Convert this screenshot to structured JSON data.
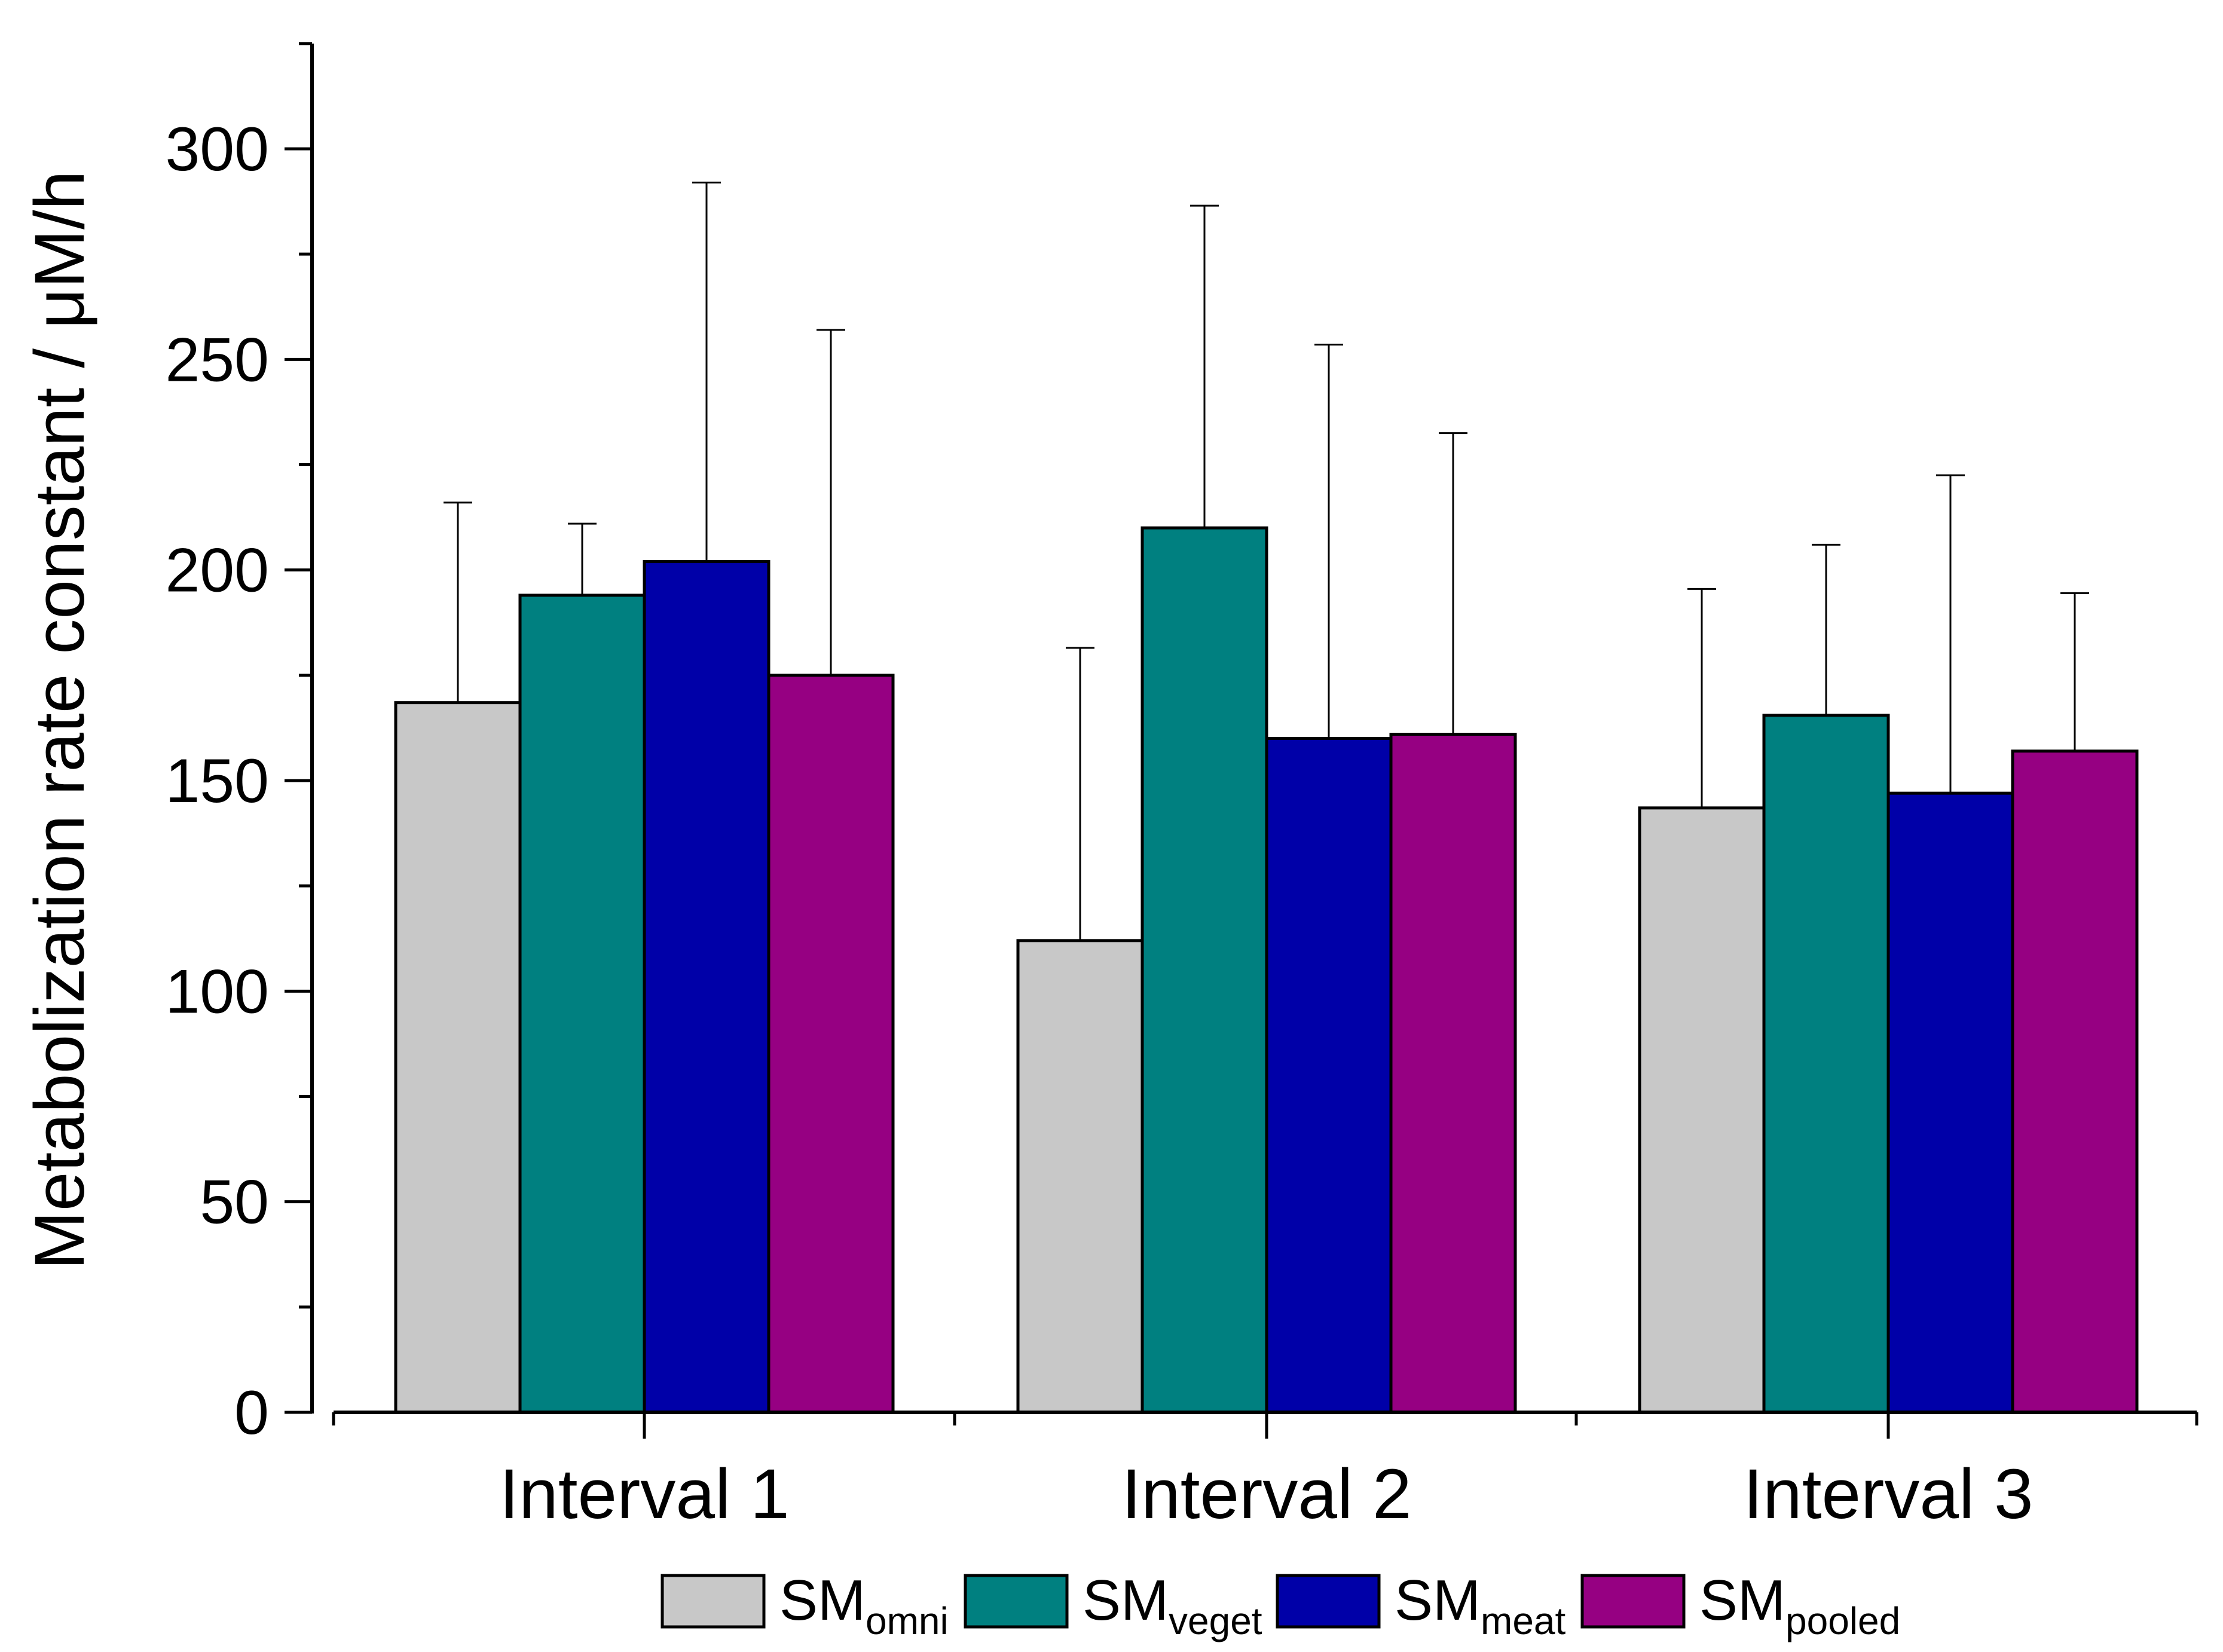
{
  "chart_data": {
    "type": "bar",
    "title": "",
    "xlabel": "",
    "ylabel": "Metabolization rate constant / μM/h",
    "ylim": [
      0,
      325
    ],
    "yticks": [
      0,
      50,
      100,
      150,
      200,
      250,
      300
    ],
    "ytick_labels": [
      "0",
      "50",
      "100",
      "150",
      "200",
      "250",
      "300"
    ],
    "y_minor_step": 25,
    "categories": [
      "Interval 1",
      "Interval 2",
      "Interval 3"
    ],
    "legend_position": "bottom",
    "series": [
      {
        "name": "SM",
        "subscript": "omni",
        "color": "#c8c8c8",
        "values": [
          168.5,
          112,
          143.5
        ],
        "errors": [
          47.5,
          69.5,
          52
        ]
      },
      {
        "name": "SM",
        "subscript": "veget",
        "color": "#008080",
        "values": [
          194,
          210,
          165.5
        ],
        "errors": [
          17,
          76.5,
          40.5
        ]
      },
      {
        "name": "SM",
        "subscript": "meat",
        "color": "#0000a8",
        "values": [
          202,
          160,
          147
        ],
        "errors": [
          90,
          93.5,
          75.5
        ]
      },
      {
        "name": "SM",
        "subscript": "pooled",
        "color": "#960082",
        "values": [
          175,
          161,
          157
        ],
        "errors": [
          82,
          71.5,
          37.5
        ]
      }
    ]
  }
}
